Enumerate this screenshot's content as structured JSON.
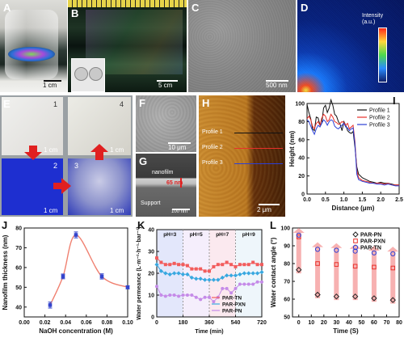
{
  "panels": {
    "A": {
      "label": "A",
      "scale": "1 cm"
    },
    "B": {
      "label": "B",
      "scale": "5 cm"
    },
    "C": {
      "label": "C",
      "scale": "500 nm"
    },
    "D": {
      "label": "D",
      "colorbar_label": "Intensity\n(a.u.)"
    },
    "E": {
      "label": "E",
      "tiles": [
        {
          "num": "1",
          "scale": "1 cm"
        },
        {
          "num": "4",
          "scale": "1 cm"
        },
        {
          "num": "2",
          "scale": "1 cm"
        },
        {
          "num": "3",
          "scale": "1 cm"
        }
      ]
    },
    "F": {
      "label": "F",
      "scale": "10 μm"
    },
    "G": {
      "label": "G",
      "nanofilm": "nanofilm",
      "support": "Support",
      "thickness": "65 nm",
      "scale": "100 nm"
    },
    "H": {
      "label": "H",
      "profiles": [
        "Profile 1",
        "Profile 2",
        "Profile 3"
      ],
      "scale": "2 μm"
    }
  },
  "colors": {
    "E_blue": "#1e2fd0",
    "I_profile1": "#111111",
    "I_profile2": "#e8302a",
    "I_profile3": "#2b3fd6",
    "J_line": "#f08070",
    "J_marker": "#3344cc",
    "K_tn": "#f25c5c",
    "K_pxn": "#38a8e0",
    "K_pn": "#c58be8",
    "L_pn": "#222222",
    "L_pxn": "#e8302a",
    "L_tn": "#2b3fd6",
    "L_arrow": "#f6a8a8"
  },
  "chart_data": [
    {
      "id": "I",
      "type": "line",
      "xlabel": "Distance (μm)",
      "ylabel": "Height (nm)",
      "xlim": [
        0,
        2.5
      ],
      "ylim": [
        0,
        100
      ],
      "xticks": [
        "0.0",
        "0.5",
        "1.0",
        "1.5",
        "2.0",
        "2.5"
      ],
      "yticks": [
        "0",
        "20",
        "40",
        "60",
        "80",
        "100"
      ],
      "legend": "top-right",
      "series": [
        {
          "name": "Profile 1",
          "x": [
            0,
            0.05,
            0.1,
            0.15,
            0.2,
            0.25,
            0.3,
            0.35,
            0.4,
            0.45,
            0.5,
            0.55,
            0.6,
            0.65,
            0.7,
            0.75,
            0.8,
            0.85,
            0.9,
            0.95,
            1.0,
            1.05,
            1.1,
            1.15,
            1.2,
            1.25,
            1.3,
            1.35,
            1.4,
            1.5,
            1.6,
            1.7,
            1.8,
            1.9,
            2.0,
            2.1,
            2.2,
            2.3,
            2.4,
            2.5
          ],
          "y": [
            99,
            90,
            83,
            72,
            70,
            85,
            84,
            76,
            78,
            95,
            98,
            90,
            95,
            104,
            98,
            88,
            86,
            80,
            77,
            70,
            80,
            76,
            70,
            68,
            67,
            69,
            52,
            30,
            22,
            18,
            16,
            14,
            13,
            12,
            13,
            12,
            12,
            11,
            10,
            10
          ]
        },
        {
          "name": "Profile 2",
          "x": [
            0,
            0.05,
            0.1,
            0.15,
            0.2,
            0.25,
            0.3,
            0.35,
            0.4,
            0.45,
            0.5,
            0.55,
            0.6,
            0.65,
            0.7,
            0.75,
            0.8,
            0.85,
            0.9,
            0.95,
            1.0,
            1.05,
            1.1,
            1.15,
            1.2,
            1.25,
            1.3,
            1.35,
            1.4,
            1.5,
            1.6,
            1.7,
            1.8,
            1.9,
            2.0,
            2.1,
            2.2,
            2.3,
            2.4,
            2.5
          ],
          "y": [
            83,
            86,
            82,
            75,
            72,
            78,
            80,
            76,
            84,
            88,
            86,
            80,
            82,
            88,
            85,
            80,
            79,
            77,
            78,
            80,
            79,
            76,
            78,
            72,
            74,
            76,
            58,
            26,
            18,
            15,
            14,
            13,
            12,
            12,
            12,
            11,
            12,
            10,
            10,
            10
          ]
        },
        {
          "name": "Profile 3",
          "x": [
            0,
            0.05,
            0.1,
            0.15,
            0.2,
            0.25,
            0.3,
            0.35,
            0.4,
            0.45,
            0.5,
            0.55,
            0.6,
            0.65,
            0.7,
            0.75,
            0.8,
            0.85,
            0.9,
            0.95,
            1.0,
            1.05,
            1.1,
            1.15,
            1.2,
            1.25,
            1.3,
            1.35,
            1.4,
            1.5,
            1.6,
            1.7,
            1.8,
            1.9,
            2.0,
            2.1,
            2.2,
            2.3,
            2.4,
            2.5
          ],
          "y": [
            82,
            80,
            75,
            70,
            66,
            72,
            76,
            74,
            78,
            82,
            80,
            76,
            80,
            82,
            81,
            75,
            73,
            72,
            74,
            76,
            78,
            74,
            73,
            70,
            72,
            73,
            55,
            22,
            16,
            14,
            13,
            12,
            12,
            11,
            11,
            10,
            11,
            10,
            9,
            9
          ]
        }
      ]
    },
    {
      "id": "J",
      "type": "line",
      "xlabel": "NaOH concentration (M)",
      "ylabel": "Nanofilm thickness (nm)",
      "xlim": [
        0.0,
        0.1
      ],
      "ylim": [
        35,
        80
      ],
      "xticks": [
        "0.00",
        "0.02",
        "0.04",
        "0.06",
        "0.08",
        "0.10"
      ],
      "yticks": [
        "40",
        "50",
        "60",
        "70",
        "80"
      ],
      "series": [
        {
          "name": "",
          "x": [
            0.025,
            0.0375,
            0.05,
            0.075,
            0.1
          ],
          "y": [
            41,
            55.5,
            76.5,
            55.5,
            50
          ],
          "err": [
            1.5,
            1.2,
            1.5,
            1.3,
            0.8
          ]
        }
      ]
    },
    {
      "id": "K",
      "type": "line",
      "xlabel": "Time (min)",
      "ylabel": "Water permeance (L·m⁻²·h⁻¹·bar⁻¹)",
      "xlim": [
        0,
        720
      ],
      "ylim": [
        0,
        40
      ],
      "xticks": [
        "0",
        "180",
        "360",
        "540",
        "720"
      ],
      "yticks": [
        "0",
        "10",
        "20",
        "30",
        "40"
      ],
      "annotations": [
        "pH=3",
        "pH=5",
        "pH=7",
        "pH=9"
      ],
      "legend": "bottom-right",
      "series": [
        {
          "name": "PAR-TN",
          "x": [
            0,
            30,
            60,
            90,
            120,
            150,
            180,
            210,
            240,
            270,
            300,
            330,
            360,
            390,
            420,
            450,
            480,
            510,
            540,
            570,
            600,
            630,
            660,
            690,
            720
          ],
          "y": [
            27,
            25,
            24,
            24,
            24.5,
            24,
            24,
            23.5,
            22,
            22,
            22,
            21,
            21,
            23,
            24,
            24,
            25,
            24,
            23,
            24,
            24,
            24,
            25,
            24,
            24
          ]
        },
        {
          "name": "PAR-PXN",
          "x": [
            0,
            30,
            60,
            90,
            120,
            150,
            180,
            210,
            240,
            270,
            300,
            330,
            360,
            390,
            420,
            450,
            480,
            510,
            540,
            570,
            600,
            630,
            660,
            690,
            720
          ],
          "y": [
            24,
            21,
            20,
            19.5,
            20,
            20,
            19.5,
            19.5,
            18,
            17.5,
            17.5,
            17,
            17,
            17,
            17,
            18,
            19,
            19,
            19,
            19.5,
            20,
            20,
            20,
            20,
            20.5
          ]
        },
        {
          "name": "PAR-PN",
          "x": [
            0,
            30,
            60,
            90,
            120,
            150,
            180,
            210,
            240,
            270,
            300,
            330,
            360,
            390,
            420,
            450,
            480,
            510,
            540,
            570,
            600,
            630,
            660,
            690,
            720
          ],
          "y": [
            14,
            10,
            9.5,
            10,
            10,
            9.5,
            10,
            10,
            10,
            9,
            8,
            9,
            9,
            7,
            9,
            13,
            13,
            11,
            13,
            15,
            15,
            15,
            15,
            16,
            16
          ]
        }
      ]
    },
    {
      "id": "L",
      "type": "scatter",
      "xlabel": "Time (S)",
      "ylabel": "Water contact angle (°)",
      "xlim": [
        -5,
        80
      ],
      "ylim": [
        50,
        100
      ],
      "xticks": [
        "0",
        "10",
        "20",
        "30",
        "40",
        "50",
        "60",
        "70",
        "80"
      ],
      "yticks": [
        "50",
        "60",
        "70",
        "80",
        "90",
        "100"
      ],
      "legend": "top-right",
      "series": [
        {
          "name": "PAR-PN",
          "x": [
            0,
            15,
            30,
            45,
            60,
            75
          ],
          "y": [
            76.5,
            62.5,
            61.5,
            61.5,
            60.5,
            59.5
          ]
        },
        {
          "name": "PAR-PXN",
          "x": [
            0,
            15,
            30,
            45,
            60,
            75
          ],
          "y": [
            95,
            80,
            79.5,
            78.5,
            78,
            77.5
          ]
        },
        {
          "name": "PAR-TN",
          "x": [
            0,
            15,
            30,
            45,
            60,
            75
          ],
          "y": [
            96,
            88,
            87.5,
            87,
            86,
            85.5
          ]
        }
      ]
    }
  ],
  "panel_labels": {
    "I": "I",
    "J": "J",
    "K": "K",
    "L": "L"
  }
}
